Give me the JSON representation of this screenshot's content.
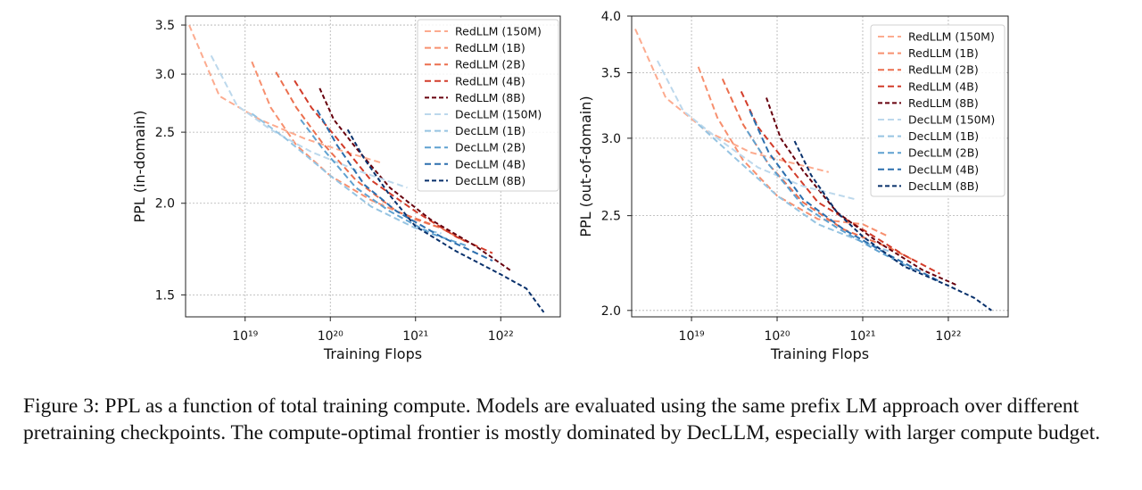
{
  "caption": "Figure 3:  PPL as a function of total training compute. Models are evaluated using the same prefix LM approach over different pretraining checkpoints. The compute-optimal frontier is mostly dominated by DecLLM, especially with larger compute budget.",
  "chart_data": [
    {
      "type": "line",
      "scale": {
        "x": "log",
        "y": "log"
      },
      "xlabel": "Training Flops",
      "ylabel": "PPL (in-domain)",
      "xlim": [
        2e+18,
        5e+22
      ],
      "ylim": [
        1.4,
        3.6
      ],
      "xticks": [
        {
          "value": 1e+19,
          "label": "10¹⁹"
        },
        {
          "value": 1e+20,
          "label": "10²⁰"
        },
        {
          "value": 1e+21,
          "label": "10²¹"
        },
        {
          "value": 1e+22,
          "label": "10²²"
        }
      ],
      "yticks": [
        {
          "value": 1.5,
          "label": "1.5"
        },
        {
          "value": 2.0,
          "label": "2.0"
        },
        {
          "value": 2.5,
          "label": "2.5"
        },
        {
          "value": 3.0,
          "label": "3.0"
        },
        {
          "value": 3.5,
          "label": "3.5"
        }
      ],
      "grid": true,
      "legend_position": "top-right",
      "series": [
        {
          "name": "RedLLM (150M)",
          "color": "#fcab8f",
          "points": [
            [
              2.2e+18,
              3.5
            ],
            [
              5e+18,
              2.8
            ],
            [
              1.5e+19,
              2.6
            ],
            [
              5e+19,
              2.45
            ],
            [
              1.5e+20,
              2.35
            ],
            [
              4e+20,
              2.27
            ]
          ]
        },
        {
          "name": "RedLLM (1B)",
          "color": "#f7906f",
          "points": [
            [
              1.2e+19,
              3.12
            ],
            [
              2e+19,
              2.7
            ],
            [
              4e+19,
              2.4
            ],
            [
              1e+20,
              2.18
            ],
            [
              3e+20,
              2.02
            ],
            [
              1e+21,
              1.9
            ],
            [
              2e+21,
              1.85
            ]
          ]
        },
        {
          "name": "RedLLM (2B)",
          "color": "#eb6f4e",
          "points": [
            [
              2.3e+19,
              3.02
            ],
            [
              4e+19,
              2.7
            ],
            [
              8e+19,
              2.42
            ],
            [
              2e+20,
              2.15
            ],
            [
              6e+20,
              1.95
            ],
            [
              2e+21,
              1.85
            ],
            [
              4e+21,
              1.77
            ]
          ]
        },
        {
          "name": "RedLLM (4B)",
          "color": "#d23c2a",
          "points": [
            [
              3.8e+19,
              2.94
            ],
            [
              6e+19,
              2.7
            ],
            [
              1.2e+20,
              2.45
            ],
            [
              3e+20,
              2.15
            ],
            [
              1e+21,
              1.95
            ],
            [
              3e+21,
              1.8
            ],
            [
              8e+21,
              1.71
            ]
          ]
        },
        {
          "name": "RedLLM (8B)",
          "color": "#67000d",
          "points": [
            [
              7.5e+19,
              2.87
            ],
            [
              1.1e+20,
              2.6
            ],
            [
              2e+20,
              2.38
            ],
            [
              5e+20,
              2.1
            ],
            [
              1.5e+21,
              1.9
            ],
            [
              5e+21,
              1.75
            ],
            [
              1.3e+22,
              1.62
            ]
          ]
        },
        {
          "name": "DecLLM (150M)",
          "color": "#bcd8ec",
          "points": [
            [
              4e+18,
              3.18
            ],
            [
              8e+18,
              2.72
            ],
            [
              2e+19,
              2.52
            ],
            [
              6e+19,
              2.35
            ],
            [
              2e+20,
              2.22
            ],
            [
              8e+20,
              2.1
            ]
          ]
        },
        {
          "name": "DecLLM (1B)",
          "color": "#96c4e2",
          "points": [
            [
              1.2e+19,
              2.65
            ],
            [
              3e+19,
              2.45
            ],
            [
              1e+20,
              2.18
            ],
            [
              3e+20,
              1.98
            ],
            [
              1e+21,
              1.85
            ],
            [
              2e+21,
              1.82
            ]
          ]
        },
        {
          "name": "DecLLM (2B)",
          "color": "#5fa1d0",
          "points": [
            [
              4.5e+19,
              2.6
            ],
            [
              8e+19,
              2.38
            ],
            [
              2e+20,
              2.1
            ],
            [
              5e+20,
              1.95
            ],
            [
              1.5e+21,
              1.82
            ],
            [
              4e+21,
              1.75
            ]
          ]
        },
        {
          "name": "DecLLM (4B)",
          "color": "#2c6fae",
          "points": [
            [
              7e+19,
              2.68
            ],
            [
              1.2e+20,
              2.4
            ],
            [
              2.5e+20,
              2.12
            ],
            [
              6e+20,
              1.95
            ],
            [
              2e+21,
              1.8
            ],
            [
              8e+21,
              1.67
            ]
          ]
        },
        {
          "name": "DecLLM (8B)",
          "color": "#08306b",
          "points": [
            [
              1.6e+20,
              2.52
            ],
            [
              2.5e+20,
              2.3
            ],
            [
              5e+20,
              2.05
            ],
            [
              1e+21,
              1.86
            ],
            [
              3e+21,
              1.72
            ],
            [
              1e+22,
              1.6
            ],
            [
              2e+22,
              1.53
            ],
            [
              3.2e+22,
              1.42
            ]
          ]
        }
      ]
    },
    {
      "type": "line",
      "scale": {
        "x": "log",
        "y": "log"
      },
      "xlabel": "Training Flops",
      "ylabel": "PPL (out-of-domain)",
      "xlim": [
        2e+18,
        5e+22
      ],
      "ylim": [
        1.97,
        4.0
      ],
      "xticks": [
        {
          "value": 1e+19,
          "label": "10¹⁹"
        },
        {
          "value": 1e+20,
          "label": "10²⁰"
        },
        {
          "value": 1e+21,
          "label": "10²¹"
        },
        {
          "value": 1e+22,
          "label": "10²²"
        }
      ],
      "yticks": [
        {
          "value": 2.0,
          "label": "2.0"
        },
        {
          "value": 2.5,
          "label": "2.5"
        },
        {
          "value": 3.0,
          "label": "3.0"
        },
        {
          "value": 3.5,
          "label": "3.5"
        },
        {
          "value": 4.0,
          "label": "4.0"
        }
      ],
      "grid": true,
      "legend_position": "top-right",
      "series": [
        {
          "name": "RedLLM (150M)",
          "color": "#fcab8f",
          "points": [
            [
              2.2e+18,
              3.88
            ],
            [
              5e+18,
              3.3
            ],
            [
              1.5e+19,
              3.05
            ],
            [
              5e+19,
              2.9
            ],
            [
              1.5e+20,
              2.83
            ],
            [
              4e+20,
              2.77
            ]
          ]
        },
        {
          "name": "RedLLM (1B)",
          "color": "#f7906f",
          "points": [
            [
              1.2e+19,
              3.55
            ],
            [
              2e+19,
              3.15
            ],
            [
              4e+19,
              2.85
            ],
            [
              1e+20,
              2.62
            ],
            [
              3e+20,
              2.48
            ],
            [
              1e+21,
              2.45
            ],
            [
              2e+21,
              2.38
            ]
          ]
        },
        {
          "name": "RedLLM (2B)",
          "color": "#eb6f4e",
          "points": [
            [
              2.3e+19,
              3.45
            ],
            [
              4e+19,
              3.1
            ],
            [
              8e+19,
              2.82
            ],
            [
              2e+20,
              2.58
            ],
            [
              6e+20,
              2.42
            ],
            [
              2e+21,
              2.32
            ],
            [
              4e+21,
              2.25
            ]
          ]
        },
        {
          "name": "RedLLM (4B)",
          "color": "#d23c2a",
          "points": [
            [
              3.8e+19,
              3.35
            ],
            [
              6e+19,
              3.08
            ],
            [
              1.2e+20,
              2.85
            ],
            [
              3e+20,
              2.58
            ],
            [
              1e+21,
              2.42
            ],
            [
              3e+21,
              2.28
            ],
            [
              8e+21,
              2.18
            ]
          ]
        },
        {
          "name": "RedLLM (8B)",
          "color": "#67000d",
          "points": [
            [
              7.5e+19,
              3.3
            ],
            [
              1.1e+20,
              3.0
            ],
            [
              2e+20,
              2.78
            ],
            [
              5e+20,
              2.52
            ],
            [
              1.5e+21,
              2.35
            ],
            [
              5e+21,
              2.2
            ],
            [
              1.3e+22,
              2.12
            ]
          ]
        },
        {
          "name": "DecLLM (150M)",
          "color": "#bcd8ec",
          "points": [
            [
              4e+18,
              3.6
            ],
            [
              8e+18,
              3.2
            ],
            [
              2e+19,
              3.0
            ],
            [
              6e+19,
              2.8
            ],
            [
              2e+20,
              2.68
            ],
            [
              8e+20,
              2.6
            ]
          ]
        },
        {
          "name": "DecLLM (1B)",
          "color": "#96c4e2",
          "points": [
            [
              1.2e+19,
              3.1
            ],
            [
              3e+19,
              2.88
            ],
            [
              1e+20,
              2.62
            ],
            [
              3e+20,
              2.45
            ],
            [
              1e+21,
              2.35
            ],
            [
              2e+21,
              2.3
            ]
          ]
        },
        {
          "name": "DecLLM (2B)",
          "color": "#5fa1d0",
          "points": [
            [
              4.5e+19,
              3.05
            ],
            [
              8e+19,
              2.82
            ],
            [
              2e+20,
              2.56
            ],
            [
              5e+20,
              2.43
            ],
            [
              1.5e+21,
              2.3
            ],
            [
              4e+21,
              2.2
            ]
          ]
        },
        {
          "name": "DecLLM (4B)",
          "color": "#2c6fae",
          "points": [
            [
              4.8e+19,
              3.2
            ],
            [
              8e+19,
              2.9
            ],
            [
              2e+20,
              2.6
            ],
            [
              6e+20,
              2.42
            ],
            [
              2e+21,
              2.28
            ],
            [
              8e+21,
              2.14
            ]
          ]
        },
        {
          "name": "DecLLM (8B)",
          "color": "#08306b",
          "points": [
            [
              1.6e+20,
              2.98
            ],
            [
              2.5e+20,
              2.75
            ],
            [
              5e+20,
              2.52
            ],
            [
              1e+21,
              2.38
            ],
            [
              3e+21,
              2.22
            ],
            [
              1e+22,
              2.12
            ],
            [
              2e+22,
              2.06
            ],
            [
              3.2e+22,
              2.0
            ]
          ]
        }
      ]
    }
  ]
}
